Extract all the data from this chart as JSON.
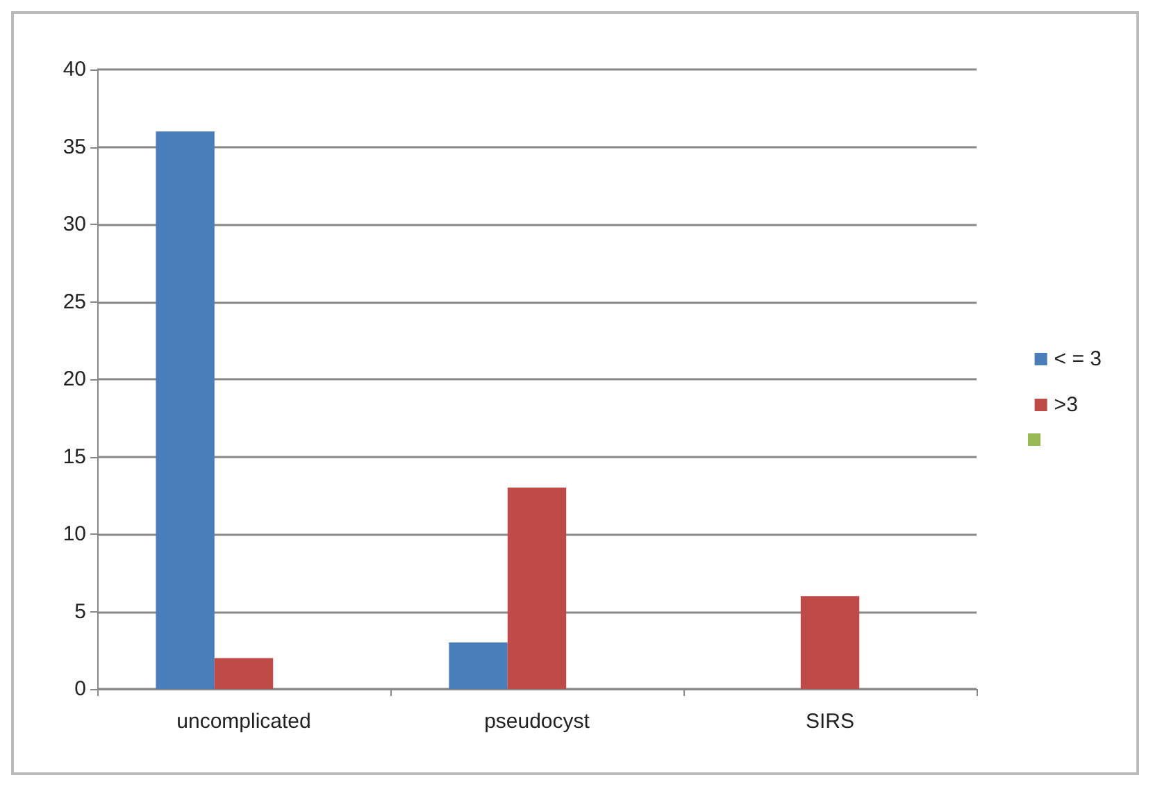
{
  "chart_data": {
    "type": "bar",
    "categories": [
      "uncomplicated",
      "pseudocyst",
      "SIRS"
    ],
    "series": [
      {
        "name": "< = 3",
        "color": "#4a7ebb",
        "values": [
          36,
          3,
          null
        ]
      },
      {
        "name": ">3",
        "color": "#be4b48",
        "values": [
          2,
          13,
          6
        ]
      },
      {
        "color": "#98b954",
        "values": [
          null,
          null,
          null
        ]
      }
    ],
    "ylim": [
      0,
      40
    ],
    "yticks": [
      0,
      5,
      10,
      15,
      20,
      25,
      30,
      35,
      40
    ],
    "grid": "y",
    "legend": "right"
  }
}
